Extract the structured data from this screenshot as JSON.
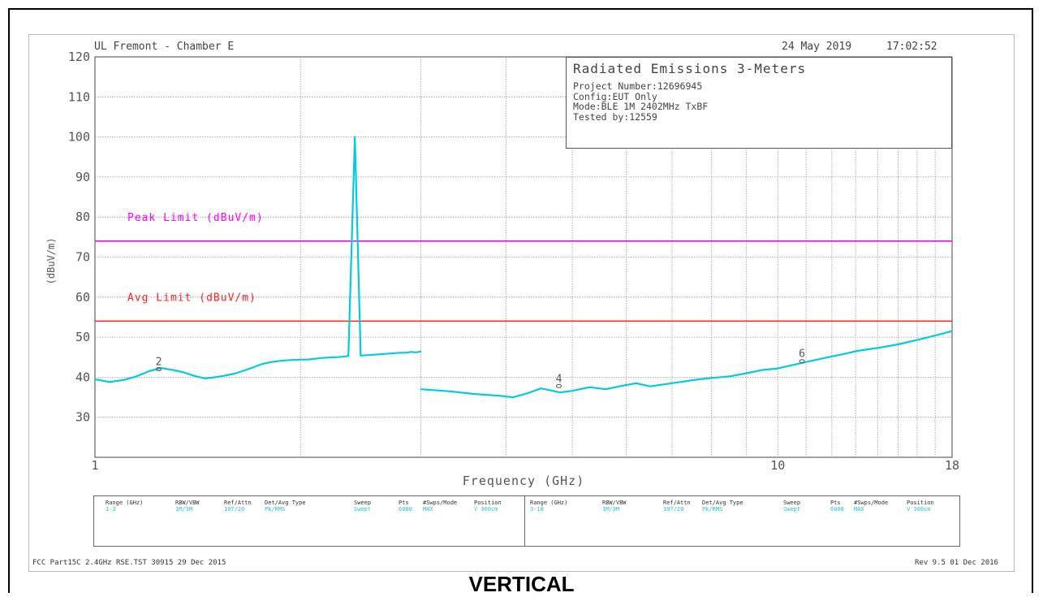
{
  "header": {
    "site": "UL Fremont - Chamber E",
    "date": "24 May 2019",
    "time": "17:02:52"
  },
  "info_box": {
    "title": "Radiated Emissions 3-Meters",
    "project": "Project Number:12696945",
    "config": "Config:EUT Only",
    "mode": "Mode:BLE 1M 2402MHz TxBF",
    "tested_by": "Tested by:12559"
  },
  "settings": {
    "headers": [
      "Range (GHz)",
      "RBW/VBW",
      "Ref/Attn",
      "Det/Avg Type",
      "Sweep",
      "Pts",
      "#Swps/Mode",
      "Position"
    ],
    "left_values": [
      "1-3",
      "1M/3M",
      "107/20",
      "Pk/RMS",
      "Swept",
      "6000",
      "MAX",
      "V 300cm"
    ],
    "right_values": [
      "3-18",
      "1M/3M",
      "107/20",
      "Pk/RMS",
      "Swept",
      "6000",
      "MAX",
      "V 300cm"
    ]
  },
  "footer": {
    "left": "FCC Part15C 2.4GHz RSE.TST 30915 29 Dec 2015",
    "right": "Rev 9.5 01 Dec 2016"
  },
  "caption": "VERTICAL",
  "colors": {
    "trace": "#00ccdd",
    "peak_limit": "#ff00ff",
    "avg_limit": "#ff2020",
    "grid": "#9a9a9a"
  },
  "chart_data": {
    "type": "line",
    "title": "",
    "xlabel": "Frequency (GHz)",
    "ylabel": "(dBuV/m)",
    "x_scale": "log",
    "xlim": [
      1,
      18
    ],
    "ylim": [
      20,
      120
    ],
    "grid": true,
    "x_tick_labels": [
      {
        "value": 1,
        "label": "1"
      },
      {
        "value": 10,
        "label": "10"
      },
      {
        "value": 18,
        "label": "18"
      }
    ],
    "y_ticks": [
      30,
      40,
      50,
      60,
      70,
      80,
      90,
      100,
      110,
      120
    ],
    "limits": [
      {
        "name": "Peak Limit (dBuV/m)",
        "value": 74,
        "color": "#ff00ff"
      },
      {
        "name": "Avg Limit (dBuV/m)",
        "value": 54,
        "color": "#ff2020"
      }
    ],
    "series": [
      {
        "color": "#00ccdd",
        "segments": [
          {
            "x": [
              1.0,
              1.05,
              1.1,
              1.15,
              1.2,
              1.25,
              1.3,
              1.35,
              1.4,
              1.45,
              1.5,
              1.55,
              1.6,
              1.65,
              1.7,
              1.75,
              1.8,
              1.85,
              1.9,
              1.95,
              2.0,
              2.05,
              2.1,
              2.15,
              2.2,
              2.25,
              2.3,
              2.35,
              2.402,
              2.45,
              2.5,
              2.55,
              2.6,
              2.65,
              2.7,
              2.75,
              2.8,
              2.85,
              2.9,
              2.95,
              3.0
            ],
            "y": [
              39.5,
              38.8,
              39.3,
              40.2,
              41.5,
              42.3,
              41.8,
              41.2,
              40.3,
              39.7,
              40.0,
              40.4,
              40.9,
              41.6,
              42.4,
              43.2,
              43.7,
              44.0,
              44.2,
              44.3,
              44.4,
              44.4,
              44.6,
              44.8,
              44.9,
              45.0,
              45.1,
              45.3,
              100.0,
              45.4,
              45.5,
              45.6,
              45.7,
              45.8,
              45.9,
              46.0,
              46.1,
              46.1,
              46.3,
              46.2,
              46.4
            ]
          },
          {
            "x": [
              3.0,
              3.3,
              3.6,
              3.9,
              4.1,
              4.3,
              4.5,
              4.8,
              5.0,
              5.3,
              5.6,
              5.9,
              6.2,
              6.5,
              6.8,
              7.2,
              7.6,
              8.0,
              8.5,
              9.0,
              9.5,
              10.0,
              10.5,
              11.0,
              11.5,
              12.0,
              12.5,
              13.0,
              14.0,
              15.0,
              16.0,
              17.0,
              18.0
            ],
            "y": [
              37.0,
              36.5,
              35.8,
              35.4,
              35.0,
              36.0,
              37.2,
              36.2,
              36.6,
              37.5,
              37.0,
              37.8,
              38.5,
              37.7,
              38.2,
              38.8,
              39.4,
              39.8,
              40.2,
              41.0,
              41.8,
              42.2,
              43.0,
              43.8,
              44.5,
              45.2,
              45.8,
              46.5,
              47.3,
              48.2,
              49.3,
              50.4,
              51.5
            ]
          }
        ]
      }
    ],
    "markers": [
      {
        "label": "2",
        "x": 1.24,
        "y": 42.2
      },
      {
        "label": "4",
        "x": 4.78,
        "y": 38.0
      },
      {
        "label": "6",
        "x": 10.85,
        "y": 44.2
      }
    ]
  }
}
